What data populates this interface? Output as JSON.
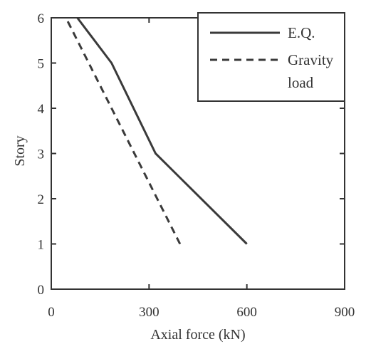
{
  "chart_data": {
    "type": "line",
    "xlabel": "Axial force (kN)",
    "ylabel": "Story",
    "xlim": [
      0,
      900
    ],
    "ylim": [
      0,
      6
    ],
    "xticks": [
      0,
      300,
      600,
      900
    ],
    "yticks": [
      0,
      1,
      2,
      3,
      4,
      5,
      6
    ],
    "grid": false,
    "legend_position": "top-right",
    "series": [
      {
        "name": "E.Q.",
        "style": "solid",
        "color": "#3a3a3a",
        "points": [
          [
            600,
            1
          ],
          [
            320,
            3
          ],
          [
            185,
            5
          ],
          [
            80,
            6
          ]
        ]
      },
      {
        "name": "Gravity load",
        "legend_lines": [
          "Gravity",
          "load"
        ],
        "style": "dashed",
        "color": "#3a3a3a",
        "points": [
          [
            395,
            1
          ],
          [
            45,
            6
          ]
        ]
      }
    ]
  }
}
